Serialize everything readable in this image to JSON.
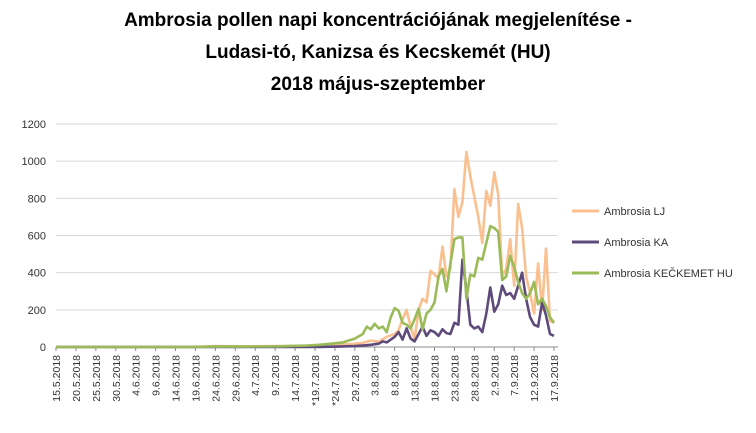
{
  "chart_data": {
    "type": "line",
    "title_lines": [
      "Ambrosia pollen napi koncentrációjának megjelenítése -",
      "Ludasi-tó, Kanizsa és Kecskemét (HU)",
      "2018 május-szeptember"
    ],
    "ylim": [
      0,
      1200
    ],
    "yticks": [
      0,
      200,
      400,
      600,
      800,
      1000,
      1200
    ],
    "grid": true,
    "legend_position": "right",
    "x_tick_labels": [
      "15.5.2018",
      "20.5.2018",
      "25.5.2018",
      "30.5.2018",
      "4.6.2018",
      "9.6.2018",
      "14.6.2018",
      "19.6.2018",
      "24.6.2018",
      "29.6.2018",
      "4.7.2018",
      "9.7.2018",
      "14.7.2018",
      "*19.7.2018",
      "*24.7.2018",
      "29.7.2018",
      "3.8.2018",
      "8.8.2018",
      "13.8.2018",
      "18.8.2018",
      "23.8.2018",
      "28.8.2018",
      "2.9.2018",
      "7.9.2018",
      "12.9.2018",
      "17.9.2018"
    ],
    "x_start": "15.5.2018",
    "x_end": "18.9.2018",
    "series": [
      {
        "name": "Ambrosia LJ",
        "color": "#FAC090",
        "points": [
          [
            "15.5.2018",
            0
          ],
          [
            "18.6.2018",
            0
          ],
          [
            "24.6.2018",
            5
          ],
          [
            "1.7.2018",
            3
          ],
          [
            "10.7.2018",
            5
          ],
          [
            "18.7.2018",
            6
          ],
          [
            "24.7.2018",
            12
          ],
          [
            "28.7.2018",
            15
          ],
          [
            "31.7.2018",
            22
          ],
          [
            "2.8.2018",
            35
          ],
          [
            "4.8.2018",
            28
          ],
          [
            "6.8.2018",
            55
          ],
          [
            "8.8.2018",
            70
          ],
          [
            "9.8.2018",
            90
          ],
          [
            "10.8.2018",
            150
          ],
          [
            "11.8.2018",
            200
          ],
          [
            "12.8.2018",
            110
          ],
          [
            "13.8.2018",
            40
          ],
          [
            "14.8.2018",
            200
          ],
          [
            "15.8.2018",
            260
          ],
          [
            "16.8.2018",
            240
          ],
          [
            "17.8.2018",
            410
          ],
          [
            "18.8.2018",
            390
          ],
          [
            "19.8.2018",
            370
          ],
          [
            "20.8.2018",
            540
          ],
          [
            "21.8.2018",
            380
          ],
          [
            "22.8.2018",
            420
          ],
          [
            "23.8.2018",
            850
          ],
          [
            "24.8.2018",
            700
          ],
          [
            "25.8.2018",
            780
          ],
          [
            "26.8.2018",
            1050
          ],
          [
            "27.8.2018",
            920
          ],
          [
            "28.8.2018",
            810
          ],
          [
            "29.8.2018",
            700
          ],
          [
            "30.8.2018",
            560
          ],
          [
            "31.8.2018",
            840
          ],
          [
            "1.9.2018",
            760
          ],
          [
            "2.9.2018",
            940
          ],
          [
            "3.9.2018",
            820
          ],
          [
            "4.9.2018",
            380
          ],
          [
            "5.9.2018",
            420
          ],
          [
            "6.9.2018",
            580
          ],
          [
            "7.9.2018",
            330
          ],
          [
            "8.9.2018",
            770
          ],
          [
            "9.9.2018",
            640
          ],
          [
            "10.9.2018",
            380
          ],
          [
            "11.9.2018",
            290
          ],
          [
            "12.9.2018",
            180
          ],
          [
            "13.9.2018",
            450
          ],
          [
            "14.9.2018",
            200
          ],
          [
            "15.9.2018",
            530
          ],
          [
            "16.9.2018",
            140
          ],
          [
            "17.9.2018",
            130
          ]
        ]
      },
      {
        "name": "Ambrosia KA",
        "color": "#5F4B7B",
        "points": [
          [
            "15.5.2018",
            0
          ],
          [
            "20.7.2018",
            0
          ],
          [
            "26.7.2018",
            3
          ],
          [
            "29.7.2018",
            5
          ],
          [
            "31.7.2018",
            8
          ],
          [
            "2.8.2018",
            12
          ],
          [
            "4.8.2018",
            18
          ],
          [
            "5.8.2018",
            30
          ],
          [
            "6.8.2018",
            25
          ],
          [
            "8.8.2018",
            55
          ],
          [
            "9.8.2018",
            80
          ],
          [
            "10.8.2018",
            40
          ],
          [
            "11.8.2018",
            100
          ],
          [
            "12.8.2018",
            45
          ],
          [
            "13.8.2018",
            30
          ],
          [
            "14.8.2018",
            70
          ],
          [
            "15.8.2018",
            110
          ],
          [
            "16.8.2018",
            60
          ],
          [
            "17.8.2018",
            90
          ],
          [
            "18.8.2018",
            80
          ],
          [
            "19.8.2018",
            60
          ],
          [
            "20.8.2018",
            95
          ],
          [
            "21.8.2018",
            75
          ],
          [
            "22.8.2018",
            70
          ],
          [
            "23.8.2018",
            130
          ],
          [
            "24.8.2018",
            120
          ],
          [
            "25.8.2018",
            470
          ],
          [
            "26.8.2018",
            310
          ],
          [
            "27.8.2018",
            120
          ],
          [
            "28.8.2018",
            100
          ],
          [
            "29.8.2018",
            110
          ],
          [
            "30.8.2018",
            80
          ],
          [
            "31.8.2018",
            180
          ],
          [
            "1.9.2018",
            320
          ],
          [
            "2.9.2018",
            190
          ],
          [
            "3.9.2018",
            230
          ],
          [
            "4.9.2018",
            330
          ],
          [
            "5.9.2018",
            280
          ],
          [
            "6.9.2018",
            290
          ],
          [
            "7.9.2018",
            260
          ],
          [
            "8.9.2018",
            330
          ],
          [
            "9.9.2018",
            400
          ],
          [
            "10.9.2018",
            260
          ],
          [
            "11.9.2018",
            160
          ],
          [
            "12.9.2018",
            120
          ],
          [
            "13.9.2018",
            110
          ],
          [
            "14.9.2018",
            240
          ],
          [
            "15.9.2018",
            170
          ],
          [
            "16.9.2018",
            70
          ],
          [
            "17.9.2018",
            60
          ]
        ]
      },
      {
        "name": "Ambrosia KEČKEMET HU",
        "color": "#9BBB59",
        "points": [
          [
            "15.5.2018",
            0
          ],
          [
            "18.6.2018",
            0
          ],
          [
            "24.6.2018",
            3
          ],
          [
            "1.7.2018",
            2
          ],
          [
            "10.7.2018",
            4
          ],
          [
            "17.7.2018",
            8
          ],
          [
            "20.7.2018",
            12
          ],
          [
            "23.7.2018",
            18
          ],
          [
            "26.7.2018",
            25
          ],
          [
            "29.7.2018",
            45
          ],
          [
            "31.7.2018",
            70
          ],
          [
            "1.8.2018",
            110
          ],
          [
            "2.8.2018",
            95
          ],
          [
            "3.8.2018",
            125
          ],
          [
            "4.8.2018",
            100
          ],
          [
            "5.8.2018",
            110
          ],
          [
            "6.8.2018",
            80
          ],
          [
            "7.8.2018",
            160
          ],
          [
            "8.8.2018",
            210
          ],
          [
            "9.8.2018",
            195
          ],
          [
            "10.8.2018",
            130
          ],
          [
            "11.8.2018",
            120
          ],
          [
            "12.8.2018",
            100
          ],
          [
            "13.8.2018",
            150
          ],
          [
            "14.8.2018",
            205
          ],
          [
            "15.8.2018",
            95
          ],
          [
            "16.8.2018",
            180
          ],
          [
            "17.8.2018",
            200
          ],
          [
            "18.8.2018",
            240
          ],
          [
            "19.8.2018",
            380
          ],
          [
            "20.8.2018",
            420
          ],
          [
            "21.8.2018",
            300
          ],
          [
            "22.8.2018",
            450
          ],
          [
            "23.8.2018",
            580
          ],
          [
            "24.8.2018",
            590
          ],
          [
            "25.8.2018",
            590
          ],
          [
            "26.8.2018",
            260
          ],
          [
            "27.8.2018",
            390
          ],
          [
            "28.8.2018",
            380
          ],
          [
            "29.8.2018",
            480
          ],
          [
            "30.8.2018",
            470
          ],
          [
            "31.8.2018",
            560
          ],
          [
            "1.9.2018",
            650
          ],
          [
            "2.9.2018",
            640
          ],
          [
            "3.9.2018",
            620
          ],
          [
            "4.9.2018",
            360
          ],
          [
            "5.9.2018",
            380
          ],
          [
            "6.9.2018",
            490
          ],
          [
            "7.9.2018",
            430
          ],
          [
            "8.9.2018",
            350
          ],
          [
            "9.9.2018",
            290
          ],
          [
            "10.9.2018",
            260
          ],
          [
            "11.9.2018",
            290
          ],
          [
            "12.9.2018",
            350
          ],
          [
            "13.9.2018",
            230
          ],
          [
            "14.9.2018",
            260
          ],
          [
            "15.9.2018",
            220
          ],
          [
            "16.9.2018",
            160
          ],
          [
            "17.9.2018",
            130
          ]
        ]
      }
    ]
  }
}
